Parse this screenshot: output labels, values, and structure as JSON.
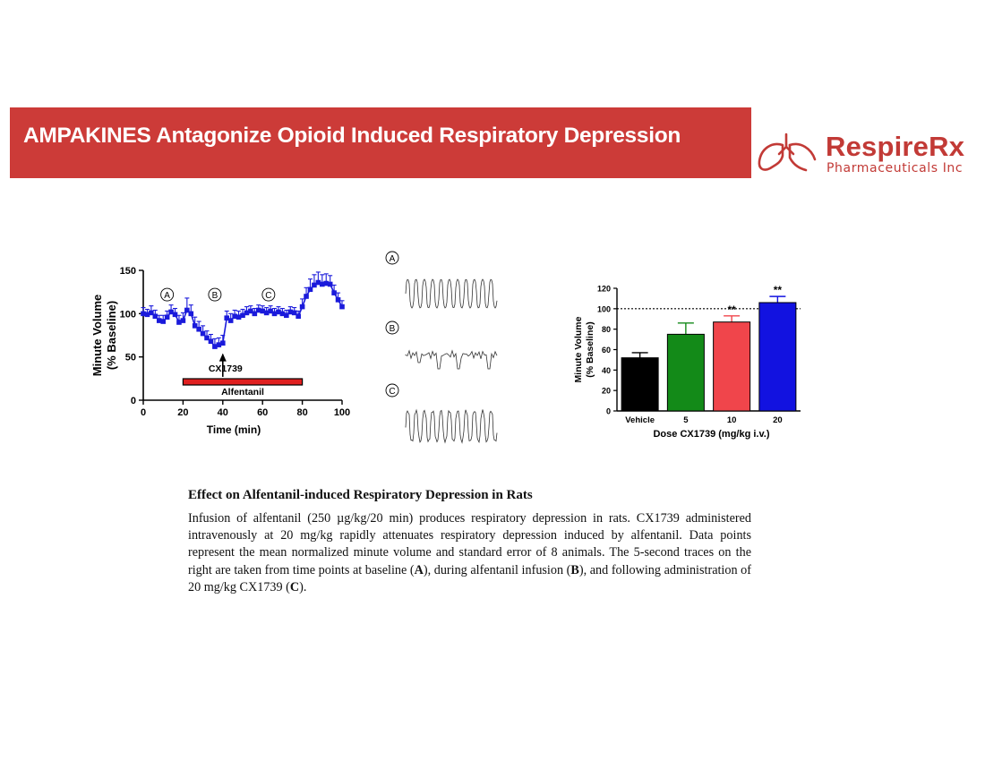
{
  "banner": {
    "title": "AMPAKINES Antagonize Opioid Induced Respiratory Depression"
  },
  "logo": {
    "name": "RespireRx",
    "subtitle": "Pharmaceuticals Inc",
    "icon": "lungs-icon",
    "color": "#c23a36"
  },
  "colors": {
    "banner": "#cc3b38",
    "series": "#1a1adb",
    "infusion_bar": "#e02020"
  },
  "chart_data": [
    {
      "type": "line",
      "xlabel": "Time (min)",
      "ylabel": "Minute Volume (% Baseline)",
      "ylabel_lines": [
        "Minute Volume",
        "(% Baseline)"
      ],
      "xlim": [
        0,
        100
      ],
      "ylim": [
        0,
        150
      ],
      "xticks": [
        0,
        20,
        40,
        60,
        80,
        100
      ],
      "yticks": [
        0,
        50,
        100,
        150
      ],
      "series": [
        {
          "color": "#1a1adb",
          "x": [
            0,
            2,
            4,
            6,
            8,
            10,
            12,
            14,
            16,
            18,
            20,
            22,
            24,
            26,
            28,
            30,
            32,
            34,
            36,
            38,
            40,
            42,
            44,
            46,
            48,
            50,
            52,
            54,
            56,
            58,
            60,
            62,
            64,
            66,
            68,
            70,
            72,
            74,
            76,
            78,
            80,
            82,
            84,
            86,
            88,
            90,
            92,
            94,
            96,
            98,
            100
          ],
          "y": [
            100,
            99,
            101,
            97,
            92,
            91,
            96,
            102,
            99,
            90,
            92,
            104,
            100,
            86,
            82,
            77,
            72,
            68,
            62,
            64,
            66,
            95,
            92,
            97,
            96,
            98,
            101,
            103,
            100,
            104,
            103,
            101,
            103,
            100,
            102,
            100,
            98,
            102,
            101,
            97,
            108,
            120,
            128,
            133,
            136,
            134,
            135,
            134,
            124,
            116,
            108
          ],
          "err": [
            7,
            6,
            8,
            7,
            6,
            7,
            7,
            8,
            7,
            8,
            9,
            14,
            10,
            10,
            9,
            9,
            8,
            8,
            9,
            8,
            9,
            8,
            8,
            7,
            7,
            7,
            7,
            6,
            6,
            6,
            6,
            6,
            6,
            6,
            6,
            6,
            6,
            6,
            6,
            6,
            9,
            10,
            12,
            12,
            12,
            11,
            11,
            10,
            9,
            8,
            7
          ]
        }
      ],
      "annotations": {
        "markers": [
          "A",
          "B",
          "C"
        ],
        "marker_x": [
          12,
          36,
          63
        ],
        "arrow_label": "CX1739",
        "arrow_x": 40
      },
      "infusion": {
        "label": "Alfentanil",
        "start": 20,
        "end": 80,
        "color": "#e02020"
      }
    },
    {
      "type": "bar",
      "categories": [
        "Vehicle",
        "5",
        "10",
        "20"
      ],
      "values": [
        52,
        75,
        87,
        106
      ],
      "errors": [
        5,
        11,
        6,
        6
      ],
      "colors": [
        "#000000",
        "#138a18",
        "#f0454b",
        "#1212e0"
      ],
      "significance": [
        "",
        "",
        "**",
        "**"
      ],
      "xlabel": "Dose CX1739 (mg/kg i.v.)",
      "ylabel": "Minute Volume (% Baseline)",
      "ylabel_lines": [
        "Minute Volume",
        "(% Baseline)"
      ],
      "ylim": [
        0,
        120
      ],
      "yticks": [
        0,
        20,
        40,
        60,
        80,
        100,
        120
      ],
      "reference_line": 100,
      "grid": false
    }
  ],
  "traces": [
    {
      "label": "A",
      "description": "baseline"
    },
    {
      "label": "B",
      "description": "alfentanil infusion"
    },
    {
      "label": "C",
      "description": "20 mg/kg CX1739"
    }
  ],
  "caption": {
    "title": "Effect on Alfentanil-induced Respiratory Depression in Rats",
    "body_parts": [
      "Infusion of alfentanil (250 µg/kg/20 min) produces respiratory depression in rats. CX1739 administered intravenously at 20 mg/kg rapidly attenuates respiratory depression induced by alfentanil. Data points represent the mean normalized minute volume and standard error of 8 animals. The 5-second traces on the right are taken from time points at baseline (",
      "A",
      "), during alfentanil infusion (",
      "B",
      "), and following administration of 20 mg/kg CX1739 (",
      "C",
      ")."
    ]
  }
}
